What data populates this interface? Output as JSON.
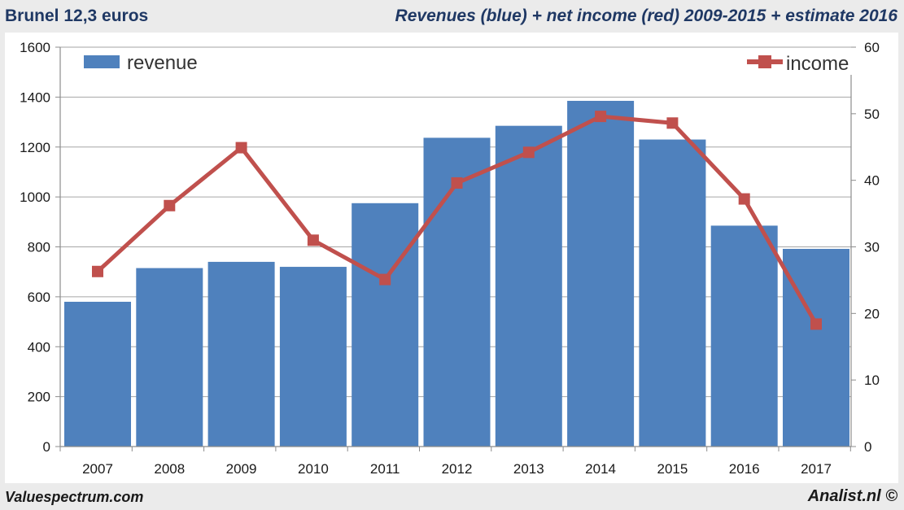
{
  "header": {
    "title_left": "Brunel 12,3 euros",
    "title_right": "Revenues (blue) + net income (red) 2009-2015 + estimate 2016"
  },
  "footer": {
    "left": "Valuespectrum.com",
    "right": "Analist.nl ©"
  },
  "colors": {
    "revenue": "#4f81bd",
    "income": "#c0504d",
    "grid": "#a6a6a6",
    "title": "#1f3864"
  },
  "chart_data": {
    "type": "bar+line",
    "title": "Revenues (blue) + net income (red) 2009-2015 + estimate 2016",
    "categories": [
      "2007",
      "2008",
      "2009",
      "2010",
      "2011",
      "2012",
      "2013",
      "2014",
      "2015",
      "2016",
      "2017"
    ],
    "series": [
      {
        "name": "revenue",
        "type": "bar",
        "axis": "left",
        "values": [
          580,
          715,
          740,
          720,
          975,
          1237,
          1285,
          1385,
          1230,
          885,
          792
        ]
      },
      {
        "name": "income",
        "type": "line",
        "axis": "right",
        "values": [
          26.3,
          36.2,
          44.9,
          31.0,
          25.1,
          39.6,
          44.2,
          49.6,
          48.6,
          37.2,
          18.4
        ]
      }
    ],
    "y_left": {
      "min": 0,
      "max": 1600,
      "step": 200,
      "ticks": [
        "0",
        "200",
        "400",
        "600",
        "800",
        "1000",
        "1200",
        "1400",
        "1600"
      ]
    },
    "y_right": {
      "min": 0,
      "max": 60,
      "step": 10,
      "ticks": [
        "0",
        "10",
        "20",
        "30",
        "40",
        "50",
        "60"
      ]
    },
    "grid": true,
    "legend": [
      {
        "label": "revenue",
        "placement": "top-left"
      },
      {
        "label": "income",
        "placement": "top-right"
      }
    ]
  }
}
